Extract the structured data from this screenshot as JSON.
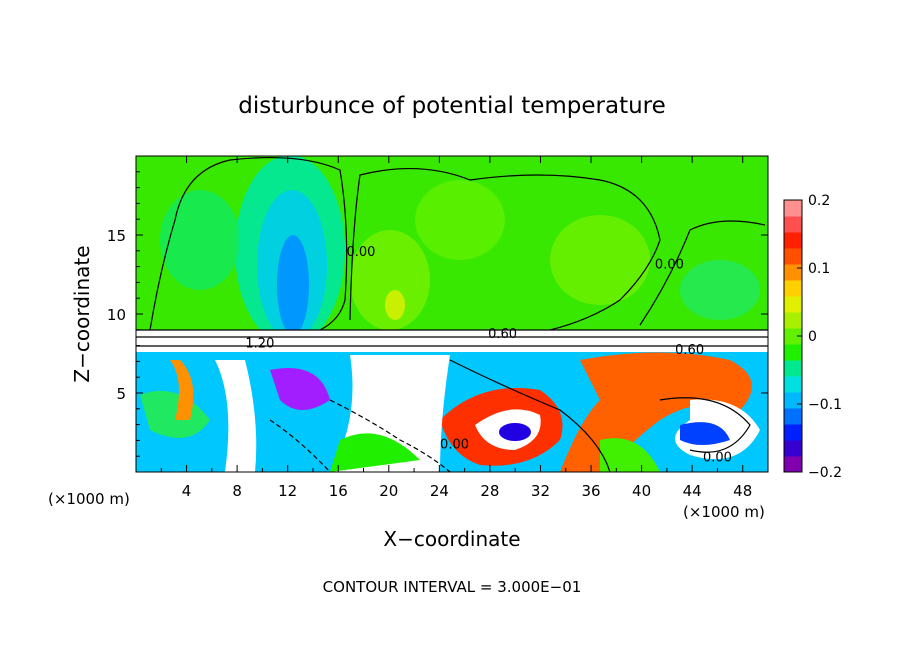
{
  "chart_data": {
    "type": "heatmap",
    "title": "disturbunce of potential temperature",
    "xlabel": "X−coordinate",
    "ylabel": "Z−coordinate",
    "x_unit_left": "(×1000 m)",
    "x_unit_right": "(×1000 m)",
    "xlim": [
      0,
      50
    ],
    "ylim": [
      0,
      20
    ],
    "x_ticks": [
      4,
      8,
      12,
      16,
      20,
      24,
      28,
      32,
      36,
      40,
      44,
      48
    ],
    "y_ticks": [
      5,
      10,
      15
    ],
    "colorbar": {
      "min": -0.2,
      "max": 0.2,
      "ticks": [
        {
          "value": 0.2,
          "label": "0.2"
        },
        {
          "value": 0.1,
          "label": "0.1"
        },
        {
          "value": 0.0,
          "label": "0"
        },
        {
          "value": -0.1,
          "label": "−0.1"
        },
        {
          "value": -0.2,
          "label": "−0.2"
        }
      ],
      "colors": [
        "#8000b0",
        "#3800d0",
        "#0020ff",
        "#0070ff",
        "#00b8ff",
        "#00e0e0",
        "#00e890",
        "#20f000",
        "#60f000",
        "#a8f000",
        "#e0f000",
        "#ffd000",
        "#ff9000",
        "#ff5000",
        "#ff2000",
        "#ff5050",
        "#ff9090"
      ]
    },
    "contour_labels": [
      {
        "x": 17.8,
        "y": 13.8,
        "text": "0.00"
      },
      {
        "x": 42.2,
        "y": 13.0,
        "text": "0.00"
      },
      {
        "x": 29.0,
        "y": 8.6,
        "text": "0.60"
      },
      {
        "x": 9.8,
        "y": 8.0,
        "text": "1.20"
      },
      {
        "x": 43.8,
        "y": 7.6,
        "text": "0.60"
      },
      {
        "x": 25.2,
        "y": 1.6,
        "text": "0.00"
      },
      {
        "x": 46.0,
        "y": 0.8,
        "text": "0.00"
      }
    ],
    "contour_interval_text": "CONTOUR INTERVAL = 3.000E−01"
  }
}
